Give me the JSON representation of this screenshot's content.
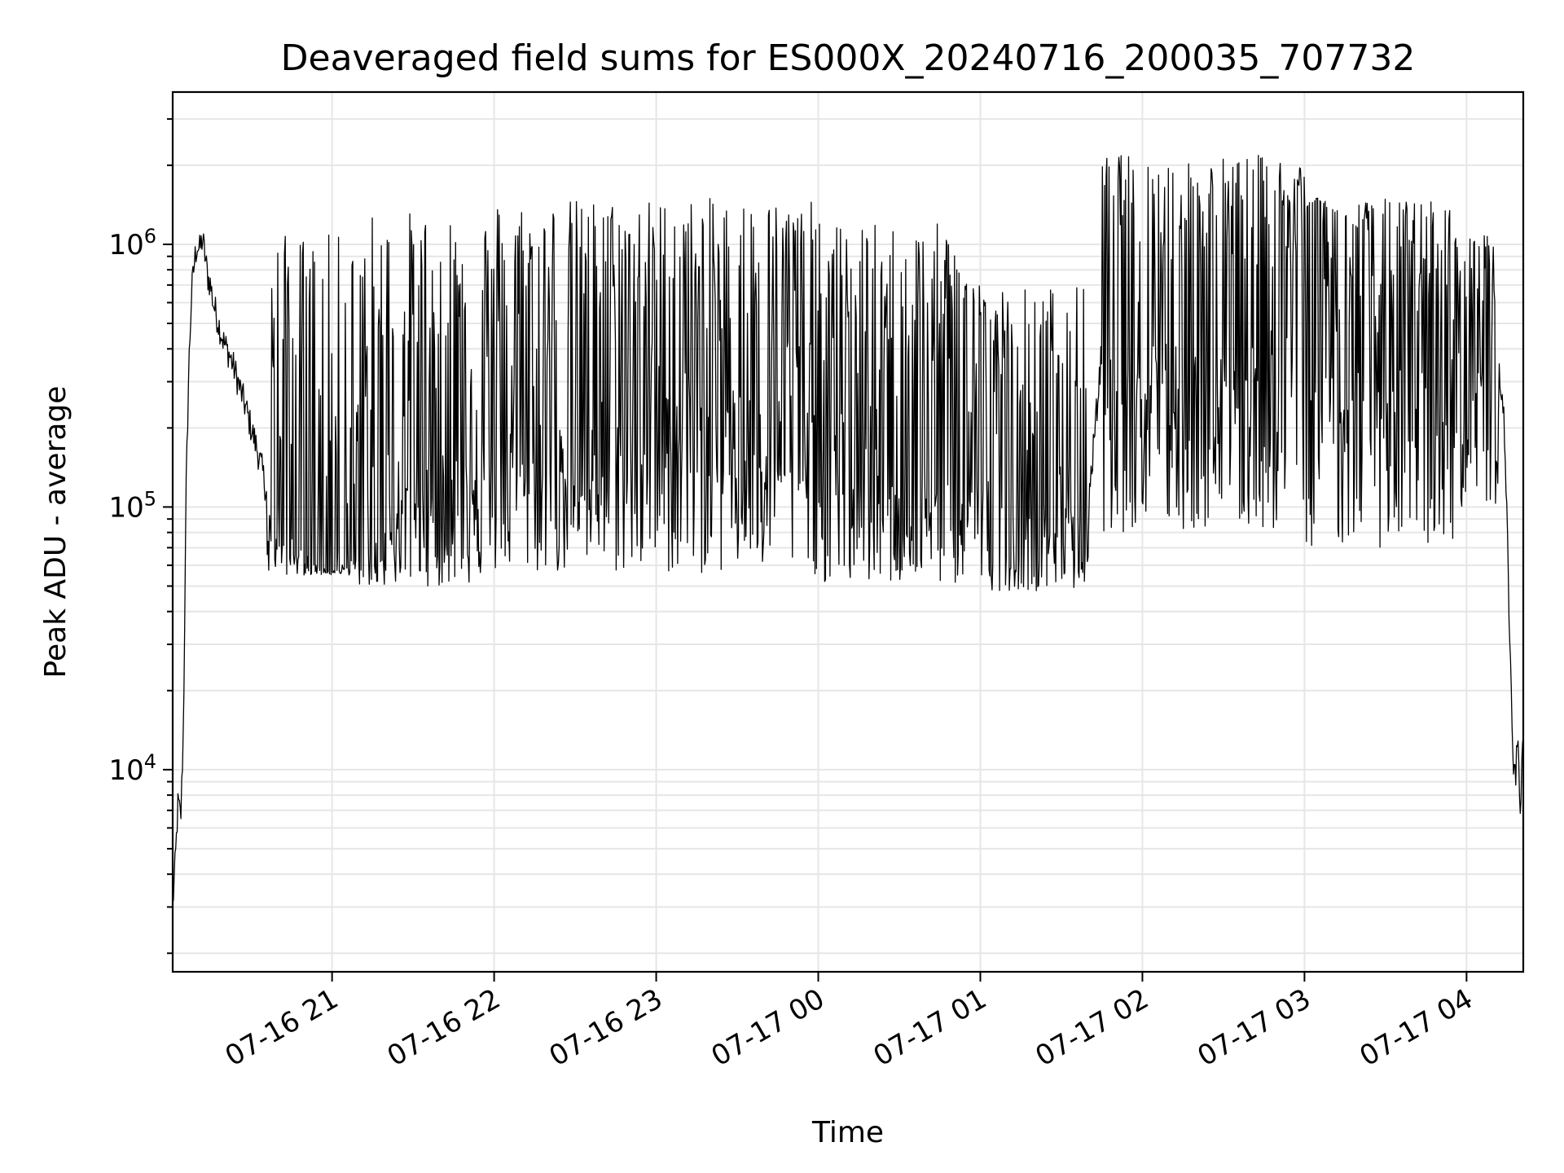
{
  "chart_data": {
    "type": "line",
    "title": "Deaveraged field sums for ES000X_20240716_200035_707732",
    "xlabel": "Time",
    "ylabel": "Peak ADU - average",
    "yscale": "log",
    "ylim": [
      1700,
      3800000
    ],
    "xlim": [
      "2024-07-16 20:01",
      "2024-07-17 04:21"
    ],
    "x_ticks": [
      {
        "value": "2024-07-16 21:00",
        "label": "07-16 21"
      },
      {
        "value": "2024-07-16 22:00",
        "label": "07-16 22"
      },
      {
        "value": "2024-07-16 23:00",
        "label": "07-16 23"
      },
      {
        "value": "2024-07-17 00:00",
        "label": "07-17 00"
      },
      {
        "value": "2024-07-17 01:00",
        "label": "07-17 01"
      },
      {
        "value": "2024-07-17 02:00",
        "label": "07-17 02"
      },
      {
        "value": "2024-07-17 03:00",
        "label": "07-17 03"
      },
      {
        "value": "2024-07-17 04:00",
        "label": "07-17 04"
      }
    ],
    "y_ticks": [
      {
        "value": 10000,
        "base": "10",
        "exp": "4"
      },
      {
        "value": 100000,
        "base": "10",
        "exp": "5"
      },
      {
        "value": 1000000,
        "base": "10",
        "exp": "6"
      }
    ],
    "grid": true,
    "line_color": "#000000",
    "grid_color": "#e6e6e6",
    "series": [
      {
        "points": [
          [
            "2024-07-16 20:01",
            3000
          ],
          [
            "2024-07-16 20:02",
            4500
          ],
          [
            "2024-07-16 20:03",
            7500
          ],
          [
            "2024-07-16 20:04",
            6500
          ],
          [
            "2024-07-16 20:05",
            15000
          ],
          [
            "2024-07-16 20:06",
            120000
          ],
          [
            "2024-07-16 20:07",
            350000
          ],
          [
            "2024-07-16 20:08",
            650000
          ],
          [
            "2024-07-16 20:09",
            850000
          ],
          [
            "2024-07-16 20:10",
            1000000
          ],
          [
            "2024-07-16 20:11",
            950000
          ],
          [
            "2024-07-16 20:12",
            1050000
          ],
          [
            "2024-07-16 20:13",
            900000
          ],
          [
            "2024-07-16 20:14",
            750000
          ],
          [
            "2024-07-16 20:15",
            700000
          ],
          [
            "2024-07-16 20:16",
            600000
          ],
          [
            "2024-07-16 20:18",
            500000
          ],
          [
            "2024-07-16 20:20",
            420000
          ],
          [
            "2024-07-16 20:22",
            380000
          ],
          [
            "2024-07-16 20:24",
            330000
          ],
          [
            "2024-07-16 20:26",
            280000
          ],
          [
            "2024-07-16 20:28",
            240000
          ],
          [
            "2024-07-16 20:30",
            200000
          ],
          [
            "2024-07-16 20:32",
            170000
          ],
          [
            "2024-07-16 20:34",
            140000
          ],
          [
            "2024-07-16 20:36",
            110000
          ],
          [
            "2024-07-16 20:38",
            100000
          ],
          [
            "2024-07-16 20:40",
            90000
          ],
          [
            "2024-07-16 20:42",
            85000
          ],
          [
            "2024-07-16 20:44",
            80000
          ],
          [
            "2024-07-16 20:46",
            75000
          ],
          [
            "2024-07-16 20:48",
            70000
          ],
          [
            "2024-07-16 20:50",
            68000
          ],
          [
            "2024-07-16 20:52",
            65000
          ],
          [
            "2024-07-16 20:54",
            62000
          ],
          [
            "2024-07-16 20:56",
            60000
          ],
          [
            "2024-07-16 20:58",
            58000
          ],
          [
            "2024-07-16 21:00",
            60000
          ],
          [
            "2024-07-16 21:05",
            62000
          ],
          [
            "2024-07-16 21:10",
            65000
          ],
          [
            "2024-07-16 21:15",
            70000
          ],
          [
            "2024-07-16 21:20",
            90000
          ],
          [
            "2024-07-16 21:25",
            110000
          ],
          [
            "2024-07-16 21:30",
            130000
          ],
          [
            "2024-07-16 21:40",
            160000
          ],
          [
            "2024-07-16 21:50",
            180000
          ],
          [
            "2024-07-16 22:00",
            200000
          ],
          [
            "2024-07-16 22:10",
            210000
          ],
          [
            "2024-07-16 22:20",
            220000
          ],
          [
            "2024-07-16 22:30",
            230000
          ],
          [
            "2024-07-16 22:40",
            240000
          ],
          [
            "2024-07-16 22:50",
            250000
          ],
          [
            "2024-07-16 23:00",
            260000
          ],
          [
            "2024-07-16 23:10",
            270000
          ],
          [
            "2024-07-16 23:20",
            275000
          ],
          [
            "2024-07-16 23:30",
            280000
          ],
          [
            "2024-07-16 23:40",
            270000
          ],
          [
            "2024-07-16 23:50",
            250000
          ],
          [
            "2024-07-17 00:00",
            230000
          ],
          [
            "2024-07-17 00:10",
            200000
          ],
          [
            "2024-07-17 00:20",
            180000
          ],
          [
            "2024-07-17 00:30",
            165000
          ],
          [
            "2024-07-17 00:40",
            150000
          ],
          [
            "2024-07-17 00:50",
            140000
          ],
          [
            "2024-07-17 01:00",
            135000
          ],
          [
            "2024-07-17 01:10",
            125000
          ],
          [
            "2024-07-17 01:20",
            115000
          ],
          [
            "2024-07-17 01:30",
            105000
          ],
          [
            "2024-07-17 01:40",
            100000
          ],
          [
            "2024-07-17 01:45",
            400000
          ],
          [
            "2024-07-17 01:50",
            700000
          ],
          [
            "2024-07-17 02:00",
            600000
          ],
          [
            "2024-07-17 02:10",
            550000
          ],
          [
            "2024-07-17 02:20",
            500000
          ],
          [
            "2024-07-17 02:30",
            450000
          ],
          [
            "2024-07-17 02:40",
            420000
          ],
          [
            "2024-07-17 02:50",
            600000
          ],
          [
            "2024-07-17 03:00",
            1200000
          ],
          [
            "2024-07-17 03:05",
            1500000
          ],
          [
            "2024-07-17 03:10",
            700000
          ],
          [
            "2024-07-17 03:20",
            450000
          ],
          [
            "2024-07-17 03:30",
            400000
          ],
          [
            "2024-07-17 03:40",
            350000
          ],
          [
            "2024-07-17 03:50",
            300000
          ],
          [
            "2024-07-17 03:55",
            300000
          ],
          [
            "2024-07-17 04:00",
            350000
          ],
          [
            "2024-07-17 04:05",
            600000
          ],
          [
            "2024-07-17 04:08",
            900000
          ],
          [
            "2024-07-17 04:10",
            450000
          ],
          [
            "2024-07-17 04:12",
            350000
          ],
          [
            "2024-07-17 04:14",
            200000
          ],
          [
            "2024-07-17 04:15",
            90000
          ],
          [
            "2024-07-17 04:16",
            30000
          ],
          [
            "2024-07-17 04:17",
            12000
          ],
          [
            "2024-07-17 04:18",
            9000
          ],
          [
            "2024-07-17 04:19",
            13000
          ],
          [
            "2024-07-17 04:20",
            7000
          ],
          [
            "2024-07-17 04:21",
            14000
          ]
        ],
        "fluctuation_bands": [
          {
            "from": "2024-07-16 20:36",
            "to": "2024-07-16 21:10",
            "high": 1100000,
            "low": 55000
          },
          {
            "from": "2024-07-16 21:10",
            "to": "2024-07-16 22:00",
            "high": 1350000,
            "low": 50000
          },
          {
            "from": "2024-07-16 22:00",
            "to": "2024-07-17 00:00",
            "high": 1500000,
            "low": 55000
          },
          {
            "from": "2024-07-17 00:00",
            "to": "2024-07-17 01:00",
            "high": 1200000,
            "low": 50000
          },
          {
            "from": "2024-07-17 01:00",
            "to": "2024-07-17 01:40",
            "high": 700000,
            "low": 48000
          },
          {
            "from": "2024-07-17 01:45",
            "to": "2024-07-17 03:00",
            "high": 2200000,
            "low": 80000
          },
          {
            "from": "2024-07-17 03:00",
            "to": "2024-07-17 03:55",
            "high": 1500000,
            "low": 70000
          },
          {
            "from": "2024-07-17 03:55",
            "to": "2024-07-17 04:12",
            "high": 1100000,
            "low": 100000
          }
        ]
      }
    ]
  }
}
